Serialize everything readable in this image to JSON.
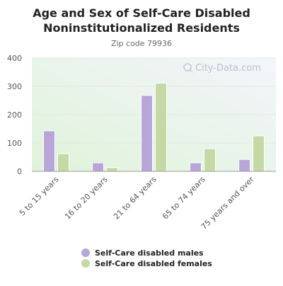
{
  "chart_data": {
    "type": "bar",
    "title": "Age and Sex of Self-Care Disabled Noninstitutionalized Residents",
    "title_lines": [
      "Age and Sex of Self-Care Disabled",
      "Noninstitutionalized Residents"
    ],
    "subtitle": "Zip code 79936",
    "categories": [
      "5 to 15 years",
      "16 to 20 years",
      "21 to 64 years",
      "65 to 74 years",
      "75 years and over"
    ],
    "series": [
      {
        "name": "Self-Care disabled males",
        "color": "#b9a6d9",
        "values": [
          143,
          30,
          268,
          30,
          42
        ]
      },
      {
        "name": "Self-Care disabled females",
        "color": "#c5d9a5",
        "values": [
          62,
          13,
          311,
          80,
          125
        ]
      }
    ],
    "yticks": [
      0,
      100,
      200,
      300,
      400
    ],
    "ylim": [
      0,
      400
    ],
    "xlabel": "",
    "ylabel": "",
    "grid": true,
    "legend_position": "bottom",
    "watermark": "City-Data.com",
    "plot_colors": {
      "bg_top": "#f3f5fb",
      "bg_bottom": "#dff3d9",
      "grid": "#e3e8e3",
      "axis": "#999999"
    }
  }
}
